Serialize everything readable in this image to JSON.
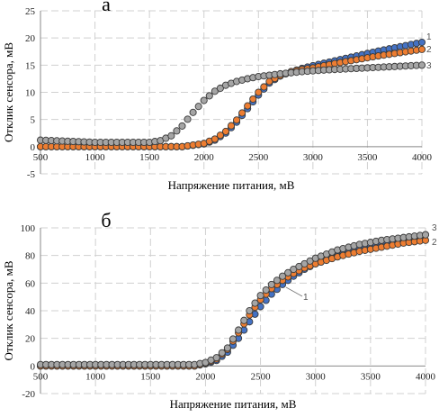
{
  "chart_data": [
    {
      "type": "scatter",
      "panel_label": "а",
      "xlabel": "Напряжение питания, мВ",
      "ylabel": "Отклик сенсора, мВ",
      "xlim": [
        500,
        4000
      ],
      "ylim": [
        -5,
        25
      ],
      "x_ticks": [
        500,
        1000,
        1500,
        2000,
        2500,
        3000,
        3500,
        4000
      ],
      "y_ticks": [
        -5,
        0,
        5,
        10,
        15,
        20,
        25
      ],
      "grid": "dashed",
      "series": [
        {
          "name": "1",
          "color": "#4472C4",
          "points": [
            [
              500,
              0
            ],
            [
              1000,
              0
            ],
            [
              1500,
              0
            ],
            [
              1800,
              0
            ],
            [
              2000,
              0.5
            ],
            [
              2100,
              1.2
            ],
            [
              2200,
              2.5
            ],
            [
              2300,
              4.5
            ],
            [
              2400,
              7
            ],
            [
              2500,
              9.5
            ],
            [
              2600,
              11.7
            ],
            [
              2700,
              13
            ],
            [
              2800,
              13.8
            ],
            [
              2900,
              14.4
            ],
            [
              3000,
              14.9
            ],
            [
              3200,
              15.8
            ],
            [
              3400,
              16.7
            ],
            [
              3600,
              17.6
            ],
            [
              3800,
              18.4
            ],
            [
              4000,
              19.2
            ]
          ]
        },
        {
          "name": "2",
          "color": "#ED7D31",
          "points": [
            [
              500,
              0
            ],
            [
              1000,
              0
            ],
            [
              1500,
              0
            ],
            [
              1800,
              0
            ],
            [
              2000,
              0.6
            ],
            [
              2100,
              1.4
            ],
            [
              2200,
              2.8
            ],
            [
              2300,
              4.9
            ],
            [
              2400,
              7.5
            ],
            [
              2500,
              10
            ],
            [
              2600,
              12
            ],
            [
              2700,
              13.1
            ],
            [
              2800,
              13.8
            ],
            [
              2900,
              14.2
            ],
            [
              3000,
              14.5
            ],
            [
              3200,
              15.3
            ],
            [
              3400,
              16
            ],
            [
              3600,
              16.7
            ],
            [
              3800,
              17.3
            ],
            [
              4000,
              17.9
            ]
          ]
        },
        {
          "name": "3",
          "color": "#A5A5A5",
          "points": [
            [
              500,
              1.2
            ],
            [
              1000,
              0.8
            ],
            [
              1500,
              0.8
            ],
            [
              1600,
              1.1
            ],
            [
              1700,
              2
            ],
            [
              1800,
              3.8
            ],
            [
              1900,
              6.3
            ],
            [
              2000,
              8.5
            ],
            [
              2100,
              10.2
            ],
            [
              2200,
              11.3
            ],
            [
              2300,
              12
            ],
            [
              2400,
              12.5
            ],
            [
              2500,
              12.9
            ],
            [
              2700,
              13.4
            ],
            [
              2900,
              13.8
            ],
            [
              3100,
              14.1
            ],
            [
              3300,
              14.3
            ],
            [
              3500,
              14.5
            ],
            [
              3700,
              14.7
            ],
            [
              4000,
              15
            ]
          ]
        }
      ]
    },
    {
      "type": "scatter",
      "panel_label": "б",
      "xlabel": "Напряжение питания, мВ",
      "ylabel": "Отклик сенсора, мВ",
      "xlim": [
        500,
        4000
      ],
      "ylim": [
        -20,
        100
      ],
      "x_ticks": [
        500,
        1000,
        1500,
        2000,
        2500,
        3000,
        3500,
        4000
      ],
      "y_ticks": [
        -20,
        0,
        20,
        40,
        60,
        80,
        100
      ],
      "grid": "dashed",
      "series": [
        {
          "name": "1",
          "color": "#4472C4",
          "points": [
            [
              500,
              0
            ],
            [
              1000,
              0
            ],
            [
              1500,
              0
            ],
            [
              1900,
              0
            ],
            [
              2000,
              1.5
            ],
            [
              2100,
              4
            ],
            [
              2200,
              10
            ],
            [
              2300,
              20
            ],
            [
              2400,
              32
            ],
            [
              2500,
              43
            ],
            [
              2600,
              52
            ],
            [
              2700,
              59
            ],
            [
              2800,
              65
            ],
            [
              2900,
              70
            ],
            [
              3000,
              74
            ],
            [
              3200,
              80
            ],
            [
              3400,
              85
            ],
            [
              3600,
              89
            ],
            [
              3800,
              92
            ],
            [
              4000,
              95
            ]
          ]
        },
        {
          "name": "2",
          "color": "#ED7D31",
          "points": [
            [
              500,
              0
            ],
            [
              1000,
              0
            ],
            [
              1500,
              0
            ],
            [
              1900,
              0
            ],
            [
              2000,
              2
            ],
            [
              2100,
              5
            ],
            [
              2200,
              12
            ],
            [
              2300,
              24
            ],
            [
              2400,
              37
            ],
            [
              2500,
              48
            ],
            [
              2600,
              56
            ],
            [
              2700,
              62
            ],
            [
              2800,
              67
            ],
            [
              2900,
              71
            ],
            [
              3000,
              74
            ],
            [
              3200,
              79
            ],
            [
              3400,
              83
            ],
            [
              3600,
              86
            ],
            [
              3800,
              89
            ],
            [
              4000,
              91
            ]
          ]
        },
        {
          "name": "3",
          "color": "#A5A5A5",
          "points": [
            [
              500,
              1
            ],
            [
              1000,
              1
            ],
            [
              1500,
              1
            ],
            [
              1900,
              1
            ],
            [
              2000,
              2.5
            ],
            [
              2100,
              6
            ],
            [
              2200,
              13
            ],
            [
              2300,
              26
            ],
            [
              2400,
              40
            ],
            [
              2500,
              51
            ],
            [
              2600,
              59
            ],
            [
              2700,
              65
            ],
            [
              2800,
              70
            ],
            [
              2900,
              74
            ],
            [
              3000,
              78
            ],
            [
              3200,
              84
            ],
            [
              3400,
              88
            ],
            [
              3600,
              91
            ],
            [
              3800,
              93
            ],
            [
              4000,
              95
            ]
          ]
        }
      ]
    }
  ]
}
